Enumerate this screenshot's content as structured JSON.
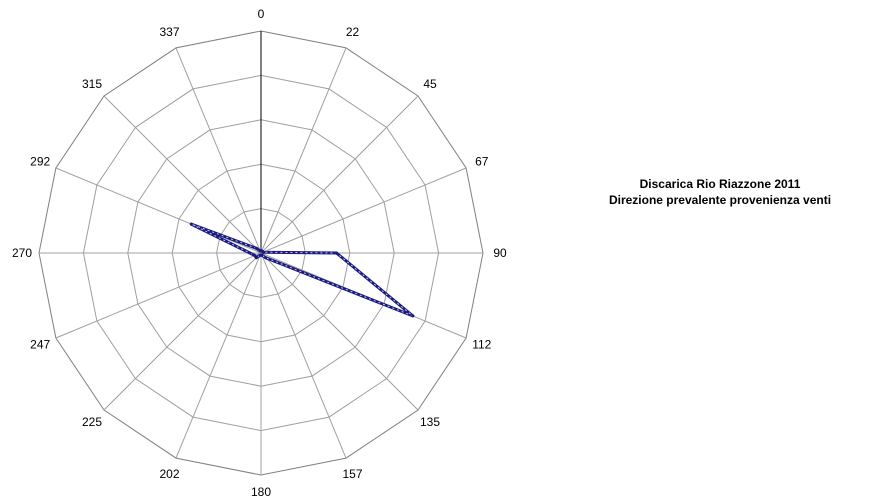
{
  "chart_data": {
    "type": "radar",
    "title": [
      "Discarica Rio Riazzone 2011",
      "Direzione prevalente provenienza venti"
    ],
    "categories": [
      "0",
      "22",
      "45",
      "67",
      "90",
      "112",
      "135",
      "157",
      "180",
      "202",
      "225",
      "247",
      "270",
      "292",
      "315",
      "337"
    ],
    "rlim": [
      0,
      5
    ],
    "grid": true,
    "gridlines": 5,
    "series": [
      {
        "values": [
          0.05,
          0.05,
          0.05,
          0.05,
          1.7,
          3.7,
          0.15,
          0.05,
          0.05,
          0.05,
          0.15,
          0.15,
          0.25,
          1.7,
          0.15,
          0.05
        ],
        "color": "#1a1a80"
      }
    ]
  }
}
